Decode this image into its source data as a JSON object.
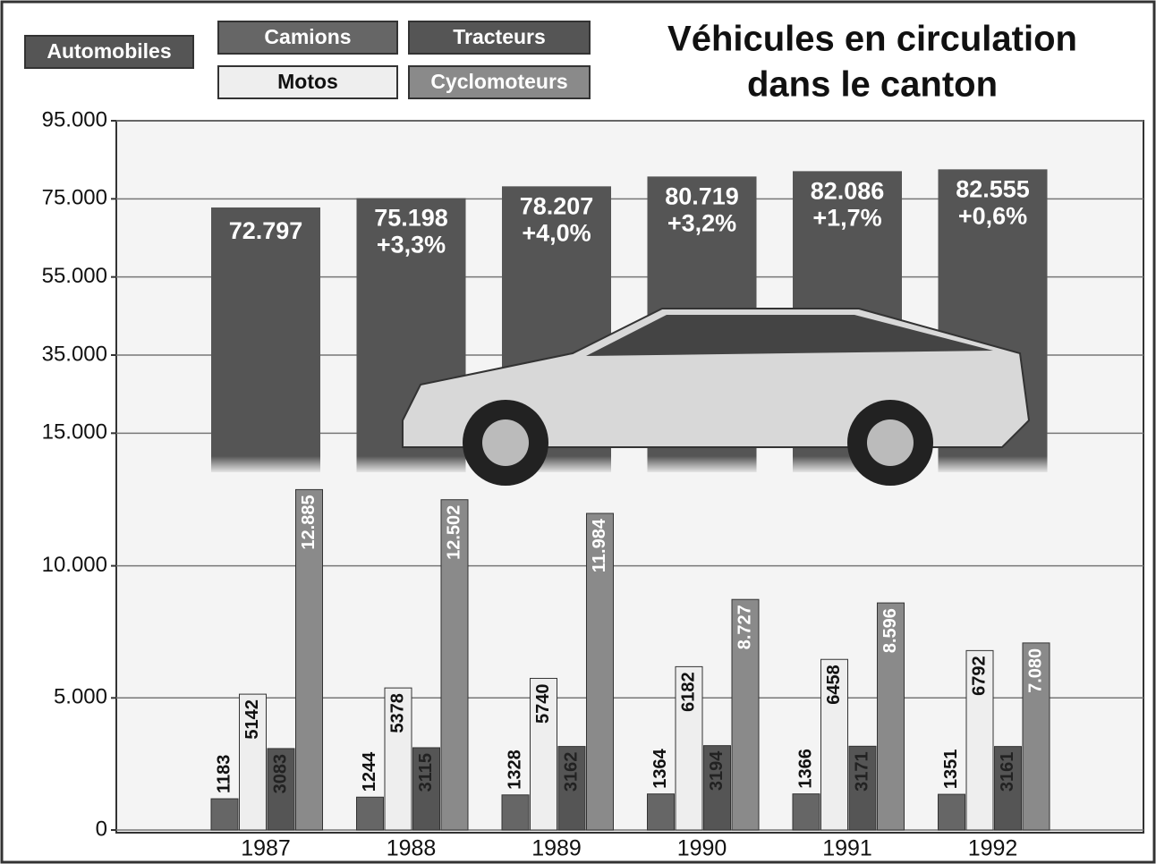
{
  "chart_data": [
    {
      "type": "bar",
      "title": [
        "Véhicules en circulation",
        "dans le canton"
      ],
      "series": [
        {
          "name": "Automobiles",
          "color": "#555555",
          "values": [
            72797,
            75198,
            78207,
            80719,
            82086,
            82555
          ],
          "value_labels": [
            "72.797",
            "75.198",
            "78.207",
            "80.719",
            "82.086",
            "82.555"
          ],
          "changes": [
            null,
            "+3,3%",
            "+4,0%",
            "+3,2%",
            "+1,7%",
            "+0,6%"
          ]
        }
      ],
      "ylim": [
        5000,
        95000
      ],
      "yticks": [
        {
          "value": 15000,
          "label": "15.000"
        },
        {
          "value": 35000,
          "label": "35.000"
        },
        {
          "value": 55000,
          "label": "55.000"
        },
        {
          "value": 75000,
          "label": "75.000"
        },
        {
          "value": 95000,
          "label": "95.000"
        }
      ],
      "grid": true
    },
    {
      "type": "bar",
      "categories": [
        "1987",
        "1988",
        "1989",
        "1990",
        "1991",
        "1992"
      ],
      "series": [
        {
          "name": "Camions",
          "color": "#666666",
          "values": [
            1183,
            1244,
            1328,
            1364,
            1366,
            1351
          ]
        },
        {
          "name": "Motos",
          "color": "#eeeeee",
          "values": [
            5142,
            5378,
            5740,
            6182,
            6458,
            6792
          ]
        },
        {
          "name": "Tracteurs",
          "color": "#555555",
          "values": [
            3083,
            3115,
            3162,
            3194,
            3171,
            3161
          ]
        },
        {
          "name": "Cyclomoteurs",
          "color": "#8a8a8a",
          "values": [
            12885,
            12502,
            11984,
            8727,
            8596,
            7080
          ],
          "value_labels": [
            "12.885",
            "12.502",
            "11.984",
            "8.727",
            "8.596",
            "7.080"
          ]
        }
      ],
      "ylim": [
        0,
        13000
      ],
      "yticks": [
        0,
        {
          "value": 5000,
          "label": "5.000"
        },
        {
          "value": 10000,
          "label": "10.000"
        }
      ],
      "grid": true
    }
  ]
}
